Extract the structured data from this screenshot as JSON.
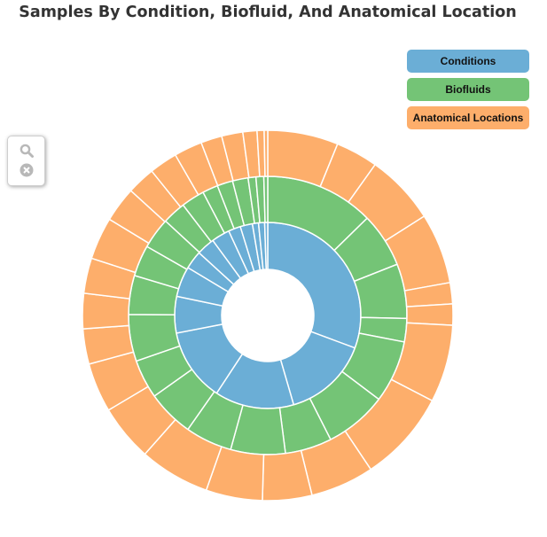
{
  "chart_data": {
    "type": "sunburst",
    "title": "Samples By Condition, Biofluid, And Anatomical Location",
    "legend": [
      {
        "label": "Conditions",
        "color": "#6baed6"
      },
      {
        "label": "Biofluids",
        "color": "#74c476"
      },
      {
        "label": "Anatomical Locations",
        "color": "#fdae6b"
      }
    ],
    "legend_position": "top-right",
    "rings": [
      {
        "level": "Conditions",
        "color": "#6baed6",
        "values": [
          29,
          14,
          13,
          12,
          6,
          5,
          3,
          3,
          3,
          2,
          2,
          1,
          1,
          0.5
        ]
      },
      {
        "level": "Biofluids",
        "color": "#74c476",
        "values": [
          14,
          7,
          7,
          3,
          8,
          8,
          6,
          7,
          6,
          6,
          5,
          6,
          5,
          4,
          4,
          3,
          3,
          2,
          2,
          2,
          1,
          1,
          0.5
        ]
      },
      {
        "level": "Anatomical Locations",
        "color": "#fdae6b",
        "values": [
          10,
          6,
          10,
          10,
          3,
          3,
          11,
          13,
          9,
          7,
          8,
          10,
          8,
          7,
          5,
          5,
          5,
          6,
          5,
          4,
          4,
          4,
          3,
          3,
          2,
          1,
          0.5
        ]
      }
    ]
  },
  "controls": {
    "zoom_icon": "magnifier-icon",
    "reset_icon": "close-circle-icon"
  }
}
